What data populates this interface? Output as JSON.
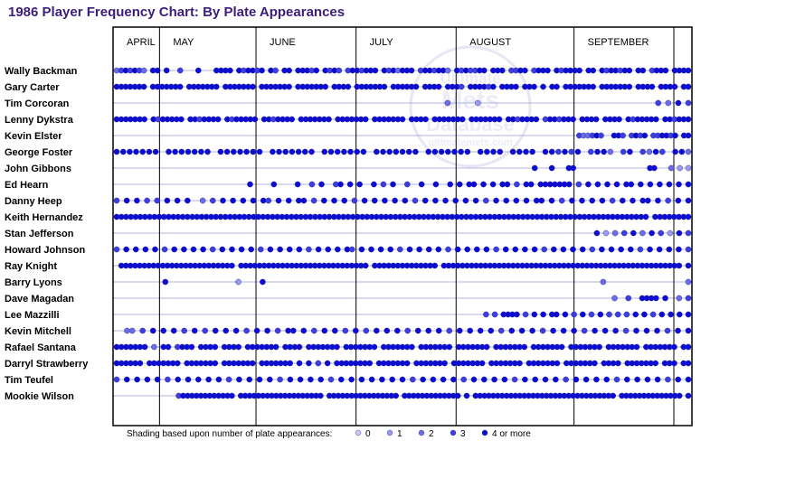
{
  "title": "1986 Player Frequency Chart: By Plate Appearances",
  "watermark": [
    "Ultimate",
    "Mets",
    "Database",
    "ultimatemets.com"
  ],
  "colors": {
    "0": "#c8c8f2",
    "1": "#9a9aee",
    "2": "#6c6ce8",
    "3": "#3d3de0",
    "4": "#0c0cd4",
    "line": "#9a9ad8",
    "title": "#3b1e7a"
  },
  "chart_data": {
    "type": "scatter",
    "title": "1986 Player Frequency Chart: By Plate Appearances",
    "months": [
      "APRIL",
      "MAY",
      "JUNE",
      "JULY",
      "AUGUST",
      "SEPTEMBER"
    ],
    "players": [
      "Wally Backman",
      "Gary Carter",
      "Tim Corcoran",
      "Lenny Dykstra",
      "Kevin Elster",
      "George Foster",
      "John Gibbons",
      "Ed Hearn",
      "Danny Heep",
      "Keith Hernandez",
      "Stan Jefferson",
      "Howard Johnson",
      "Ray Knight",
      "Barry Lyons",
      "Dave Magadan",
      "Lee Mazzilli",
      "Kevin Mitchell",
      "Rafael Santana",
      "Darryl Strawberry",
      "Tim Teufel",
      "Mookie Wilson"
    ],
    "legend": {
      "label": "Shading based upon number of plate appearances:",
      "levels": [
        {
          "level": 0,
          "label": "0"
        },
        {
          "level": 1,
          "label": "1"
        },
        {
          "level": 2,
          "label": "2"
        },
        {
          "level": 3,
          "label": "3"
        },
        {
          "level": 4,
          "label": "4 or more"
        }
      ]
    },
    "games_per_month": [
      13,
      27,
      28,
      28,
      33,
      33
    ],
    "rows": [
      "2343432 44 4  3   4   4444 434434 43 44 44434 4343 3443444 4342444 3443442 4343344 444 3344 3444 434444 44 4344344 44 3444 4444",
      "4444444 4444444 4444444 4444444 4444444 4444444 4444 4444444 444444 4444 4443 444434 4444 444 4 44 4444444 4444444 4444 4444 44",
      "                                 2  1                 3243",
      "4444444 4344444 4434444 4344444 4434444 4444444 4444444 4444444 4444 4444444 4444444 4434444 3443444 4444 4444 4344444 443444",
      "                                                                                                          322343  443 3434 334434 44",
      "4444444 4444444 4444444 4444444 4444444 4444444 4444444 4444 4444 443434 3442 34 3243 442",
      "                                                                                                  4   4   44                 44   2 1 1",
      "                            4    4    4  3 4  34 4 4  4 3 4  3  4  4  4 4 44 4 4 44 3 44 4444444 3 4 4 4 4 44 4 4 4 4 4 4",
      "3 4 4 3 3 4 4 4  2 3 4 4 4 4 43 4 4 44 3 4 4 4 3 4 4 4 4 4 3 4 4 4 4 4 4 3 4 4 4 4 44 4 3 4 4 4 4 3 4 4 44 4 3 4 4",
      "44444444444444444444444444444444444444444444444444444444444444444444444444444444444444444444444444444444444444444 44444444",
      "                                                                                                         4 1 2 3 4 2 4 3 1 4 3",
      "3 4 4 4 4 3 4 4 4 4 3 4 4 4 4 3 4 4 4 4 3 4 4 4 43 4 4 4 4 3 4 4 4 4 3 4 4 4 4 3 4 4 4 4 3 4 4 4 4 3 4 4 4 4 3 4 4 4 4 3",
      " 4444444444444444444444444 4444444444444444444444444444 44444444444444 4444444444444444444444444444444444444444444444444444 4",
      "    4     1 4                           2      2",
      "                                                                                                            2  3  4444 4  2 3",
      "                                                                                    3 3 4444 3 4 4 44 4 3 4 3 4 3 3 3 4 4 3 4 4 4 4",
      "  22 3 4 4 4 3 4 3 4 4 4 3 4 4 3 44 4 3 4 4 3 4 3 4 4 4 3 4 4 4 3 4 4 4 4 3 4 4 4 3 4 4 4 3 4 4 4 3 4 4 4 3 4 4",
      "4444444 2 44 3444 4444 4444 4444444 4444 4444444 4444444 4444444 4444444 4444444 4444444 4444444 4444444 4444444 4444444 44",
      "444444 4444444 4444444 4444444 4444444 4 4 3 4 44444444 4444444 4444444 4444444 4444444 4444444 4444444 4444 4444444 444 44",
      "3 4 4 4 4 3 4 4 4 4 4 3 4 4 4 4 3 4 4 4 4 3 4 4 4 4 4 4 4 3 4 4 4 4 3 4 4 4 4 3 4 4 4 4 3 4 4 4 4 3 4 4 4 4 3 4 4",
      "              3444444444444 4444444444444444444 4444444444444444 4444444444444 4 44444444444444444444444444444444 44444444444444 4"
    ]
  }
}
